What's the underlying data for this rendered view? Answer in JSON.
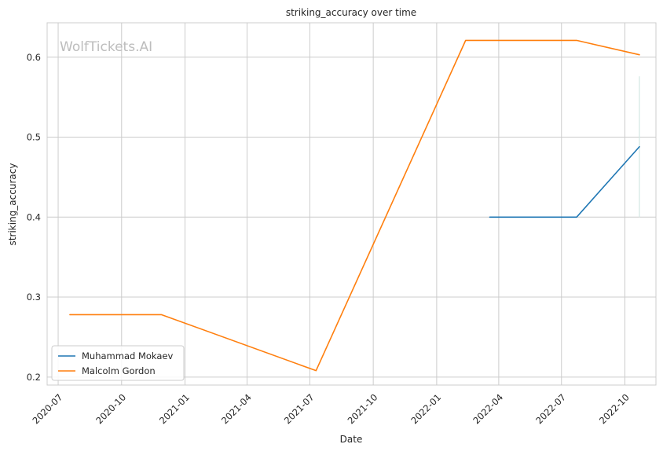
{
  "watermark": "WolfTickets.AI",
  "chart_data": {
    "type": "line",
    "title": "striking_accuracy over time",
    "xlabel": "Date",
    "ylabel": "striking_accuracy",
    "x_type": "date",
    "xlim": [
      "2020-06-15",
      "2022-11-15"
    ],
    "ylim": [
      0.19,
      0.643
    ],
    "x_ticks": [
      "2020-07-01",
      "2020-10-01",
      "2021-01-01",
      "2021-04-01",
      "2021-07-01",
      "2021-10-01",
      "2022-01-01",
      "2022-04-01",
      "2022-07-01",
      "2022-10-01"
    ],
    "x_tick_labels": [
      "2020-07",
      "2020-10",
      "2021-01",
      "2021-04",
      "2021-07",
      "2021-10",
      "2022-01",
      "2022-04",
      "2022-07",
      "2022-10"
    ],
    "y_ticks": [
      0.2,
      0.3,
      0.4,
      0.5,
      0.6
    ],
    "y_tick_labels": [
      "0.2",
      "0.3",
      "0.4",
      "0.5",
      "0.6"
    ],
    "grid": true,
    "legend_position": "lower-left",
    "series": [
      {
        "name": "Muhammad Mokaev",
        "color": "#1f77b4",
        "x": [
          "2022-03-19",
          "2022-07-23",
          "2022-10-22"
        ],
        "y": [
          0.4,
          0.4,
          0.488
        ]
      },
      {
        "name": "Malcolm Gordon",
        "color": "#ff7f0e",
        "x": [
          "2020-07-18",
          "2020-11-28",
          "2021-07-10",
          "2022-02-12",
          "2022-07-23",
          "2022-10-22"
        ],
        "y": [
          0.278,
          0.278,
          0.208,
          0.621,
          0.621,
          0.603
        ]
      }
    ],
    "annotation_band": {
      "x": "2022-10-22",
      "y_range": [
        0.4,
        0.576
      ],
      "color": "#d2e7e2"
    }
  }
}
